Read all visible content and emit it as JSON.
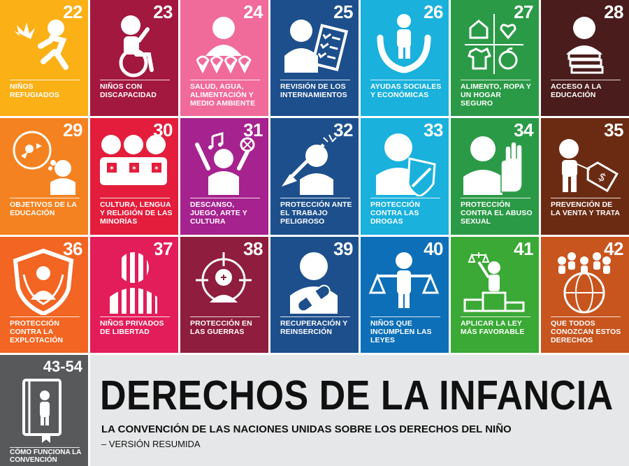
{
  "tiles": [
    {
      "num": "22",
      "label": "Niños refugiados",
      "color": "#fbb016",
      "icon": "refugee-child-icon"
    },
    {
      "num": "23",
      "label": "Niños con discapacidad",
      "color": "#a3183e",
      "icon": "wheelchair-child-icon"
    },
    {
      "num": "24",
      "label": "Salud, agua, alimentación y medio ambiente",
      "color": "#f06a9a",
      "icon": "health-checks-icon"
    },
    {
      "num": "25",
      "label": "Revisión de los internamientos",
      "color": "#1d4f8c",
      "icon": "checklist-review-icon"
    },
    {
      "num": "26",
      "label": "Ayudas sociales y económicas",
      "color": "#1ab1dd",
      "icon": "helping-hands-icon"
    },
    {
      "num": "27",
      "label": "Alimento, ropa y un hogar seguro",
      "color": "#2b9a47",
      "icon": "home-heart-shirt-food-icon"
    },
    {
      "num": "28",
      "label": "Acceso a la educación",
      "color": "#4a1c1c",
      "icon": "books-icon"
    },
    {
      "num": "29",
      "label": "Objetivos de la educación",
      "color": "#f58220",
      "icon": "thinking-child-icon"
    },
    {
      "num": "30",
      "label": "Cultura, lengua y religión de las minorías",
      "color": "#e31d3b",
      "icon": "minority-group-icon"
    },
    {
      "num": "31",
      "label": "Descanso, juego, arte y cultura",
      "color": "#a6228e",
      "icon": "play-music-icon"
    },
    {
      "num": "32",
      "label": "Protección ante el trabajo peligroso",
      "color": "#1d4f8c",
      "icon": "shovel-work-icon"
    },
    {
      "num": "33",
      "label": "Protección contra las drogas",
      "color": "#1ab1dd",
      "icon": "drug-shield-icon"
    },
    {
      "num": "34",
      "label": "Protección contra el abuso sexual",
      "color": "#2b9a47",
      "icon": "stop-hand-icon"
    },
    {
      "num": "35",
      "label": "Prevención de la venta y trata",
      "color": "#6b2b13",
      "icon": "price-tag-child-icon"
    },
    {
      "num": "36",
      "label": "Protección contra la explotación",
      "color": "#f26522",
      "icon": "protection-shield-icon"
    },
    {
      "num": "37",
      "label": "Niños privados de libertad",
      "color": "#e31d5a",
      "icon": "prison-bars-icon"
    },
    {
      "num": "38",
      "label": "Protección en las guerras",
      "color": "#8f1d3d",
      "icon": "crosshair-target-icon"
    },
    {
      "num": "39",
      "label": "Recuperación y reinserción",
      "color": "#1d4f8c",
      "icon": "bandage-child-icon"
    },
    {
      "num": "40",
      "label": "Niños que incumplen las leyes",
      "color": "#0d6fb8",
      "icon": "justice-scale-icon"
    },
    {
      "num": "41",
      "label": "Aplicar la ley más favorable",
      "color": "#3aa935",
      "icon": "podium-scale-icon"
    },
    {
      "num": "42",
      "label": "Que todos conozcan estos derechos",
      "color": "#c8541e",
      "icon": "globe-people-icon"
    }
  ],
  "footer_tile": {
    "num": "43-54",
    "label": "Cómo funciona la convención",
    "color": "#58595b",
    "icon": "convention-book-icon"
  },
  "banner": {
    "title": "DERECHOS DE LA INFANCIA",
    "subtitle": "LA CONVENCIÓN DE LAS NACIONES UNIDAS SOBRE LOS DERECHOS DEL NIÑO",
    "version": "– VERSIÓN RESUMIDA"
  }
}
